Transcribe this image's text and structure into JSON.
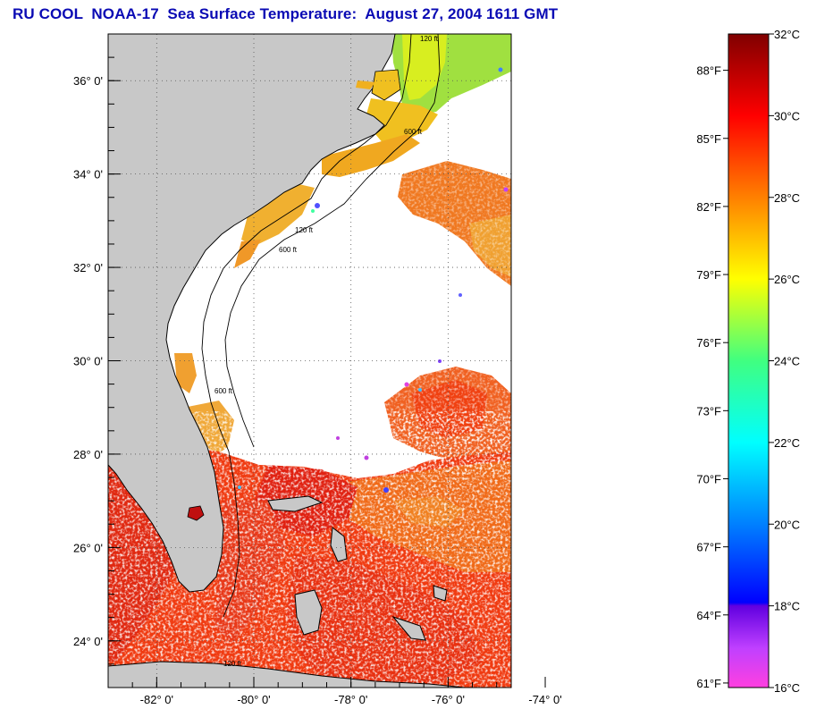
{
  "title": "RU COOL  NOAA-17  Sea Surface Temperature:  August 27, 2004 1611 GMT",
  "colors": {
    "land": "#c8c8c8",
    "ocean_nodata": "#ffffff",
    "title": "#0a0ab4",
    "grid": "#555555"
  },
  "map": {
    "lat_labels": [
      "36° 0'",
      "34° 0'",
      "32° 0'",
      "30° 0'",
      "28° 0'",
      "26° 0'",
      "24° 0'"
    ],
    "lon_labels": [
      "-82° 0'",
      "-80° 0'",
      "-78° 0'",
      "-76° 0'",
      "-74° 0'"
    ],
    "lat_values": [
      36,
      34,
      32,
      30,
      28,
      26,
      24
    ],
    "lon_values": [
      -82,
      -80,
      -78,
      -76,
      -74
    ],
    "lon_range": [
      -83.0,
      -74.7
    ],
    "lat_range": [
      23.0,
      37.0
    ],
    "isobath_labels": [
      "120 ft",
      "600 ft",
      "120 ft",
      "600 ft",
      "600 ft",
      "120 ft"
    ]
  },
  "colorbar": {
    "celsius_labels": [
      "32°C",
      "30°C",
      "28°C",
      "26°C",
      "24°C",
      "22°C",
      "20°C",
      "18°C",
      "16°C"
    ],
    "fahrenheit_labels": [
      "88°F",
      "85°F",
      "82°F",
      "79°F",
      "76°F",
      "73°F",
      "70°F",
      "67°F",
      "64°F",
      "61°F"
    ],
    "celsius_values": [
      32,
      30,
      28,
      26,
      24,
      22,
      20,
      18,
      16
    ],
    "fahrenheit_values": [
      88,
      85,
      82,
      79,
      76,
      73,
      70,
      67,
      64,
      61
    ],
    "range_celsius": [
      16,
      32
    ]
  }
}
